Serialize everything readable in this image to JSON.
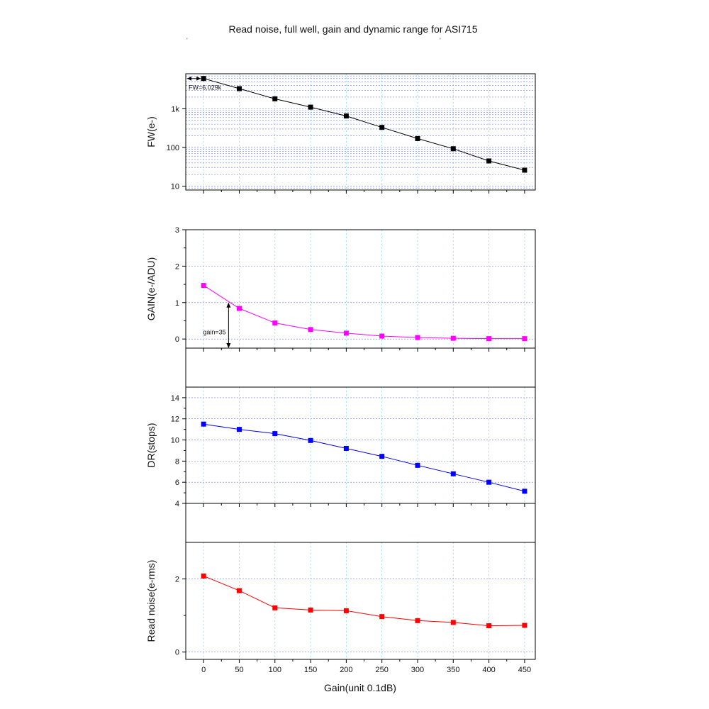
{
  "page": {
    "title": "Read noise, full well, gain and dynamic range for ASI715"
  },
  "chart_data": {
    "type": "line",
    "title": "Read noise, full well, gain and dynamic range for ASI715",
    "x": [
      0,
      50,
      100,
      150,
      200,
      250,
      300,
      350,
      400,
      450
    ],
    "xlabel": "Gain(unit 0.1dB)",
    "xticks": [
      "0",
      "50",
      "100",
      "150",
      "200",
      "250",
      "300",
      "350",
      "400",
      "450"
    ],
    "xlim": [
      -25,
      465
    ],
    "panels": [
      {
        "name": "fw",
        "ylabel": "FW(e-)",
        "scale": "log",
        "ylim": [
          8,
          8000
        ],
        "yticks": [
          10,
          100,
          1000
        ],
        "ytick_labels": [
          "10",
          "100",
          "1k"
        ],
        "values": [
          6029,
          3300,
          1800,
          1100,
          650,
          330,
          170,
          93,
          45,
          26
        ],
        "color": "#000000",
        "annotation": "FW=6.029k"
      },
      {
        "name": "gain",
        "ylabel": "GAIN(e-/ADU)",
        "scale": "linear",
        "ylim": [
          -0.25,
          3
        ],
        "yticks": [
          0,
          1,
          2,
          3
        ],
        "ytick_labels": [
          "0",
          "1",
          "2",
          "3"
        ],
        "values": [
          1.47,
          0.84,
          0.44,
          0.26,
          0.16,
          0.08,
          0.04,
          0.02,
          0.01,
          0.01
        ],
        "color": "#ff00ff",
        "annotation": "gain=35"
      },
      {
        "name": "dr",
        "ylabel": "DR(stops)",
        "scale": "linear",
        "ylim": [
          4,
          15
        ],
        "yticks": [
          4,
          6,
          8,
          10,
          12,
          14
        ],
        "ytick_labels": [
          "4",
          "6",
          "8",
          "10",
          "12",
          "14"
        ],
        "values": [
          11.5,
          11.0,
          10.6,
          9.95,
          9.2,
          8.45,
          7.6,
          6.8,
          6.0,
          5.15
        ],
        "color": "#0000ff"
      },
      {
        "name": "rn",
        "ylabel": "Read noise(e-rms)",
        "scale": "linear",
        "ylim": [
          -0.2,
          3
        ],
        "yticks": [
          0,
          2
        ],
        "ytick_labels": [
          "0",
          "2"
        ],
        "values": [
          2.08,
          1.68,
          1.21,
          1.15,
          1.13,
          0.97,
          0.86,
          0.81,
          0.72,
          0.73
        ],
        "color": "#ff0000"
      }
    ]
  }
}
